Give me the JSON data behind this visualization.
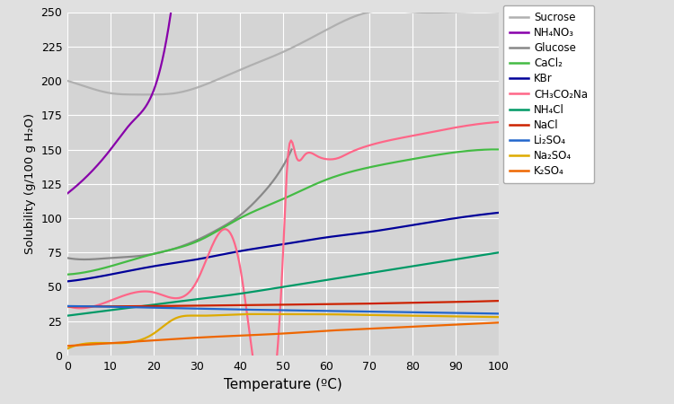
{
  "xlabel": "Temperature (ºC)",
  "ylabel": "Solubility (g/100 g H₂O)",
  "xlim": [
    0,
    100
  ],
  "ylim": [
    0,
    250
  ],
  "fig_facecolor": "#e0e0e0",
  "plot_facecolor": "#d4d4d4",
  "grid_color": "#ffffff",
  "series": [
    {
      "name": "Sucrose",
      "color": "#b0b0b0",
      "linewidth": 1.6,
      "x": [
        0,
        5,
        10,
        15,
        20,
        25,
        30,
        40,
        50,
        60,
        70,
        80,
        90,
        100
      ],
      "y": [
        200,
        195,
        191,
        190,
        190,
        191,
        195,
        208,
        221,
        237,
        250,
        250,
        250,
        250
      ]
    },
    {
      "name": "NH₄NO₃",
      "color": "#8800aa",
      "linewidth": 1.6,
      "x": [
        0,
        5,
        10,
        15,
        20,
        22,
        24
      ],
      "y": [
        118,
        132,
        150,
        170,
        193,
        215,
        250
      ]
    },
    {
      "name": "Glucose",
      "color": "#888888",
      "linewidth": 1.6,
      "x": [
        0,
        5,
        10,
        15,
        20,
        25,
        30,
        35,
        40,
        45,
        50,
        52
      ],
      "y": [
        71,
        70,
        71,
        72,
        74,
        78,
        84,
        92,
        102,
        117,
        138,
        150
      ]
    },
    {
      "name": "CaCl₂",
      "color": "#44bb44",
      "linewidth": 1.6,
      "x": [
        0,
        10,
        20,
        30,
        40,
        50,
        60,
        70,
        80,
        90,
        100
      ],
      "y": [
        59,
        65,
        74,
        83,
        100,
        114,
        128,
        137,
        143,
        148,
        150
      ]
    },
    {
      "name": "KBr",
      "color": "#000099",
      "linewidth": 1.6,
      "x": [
        0,
        10,
        20,
        30,
        40,
        50,
        60,
        70,
        80,
        90,
        100
      ],
      "y": [
        54,
        59,
        65,
        70,
        76,
        81,
        86,
        90,
        95,
        100,
        104
      ]
    },
    {
      "name": "CH₃CO₂Na",
      "color": "#ff6688",
      "linewidth": 1.6,
      "x": [
        0,
        10,
        20,
        30,
        40,
        50,
        51,
        53,
        55,
        58,
        60,
        63,
        65,
        70,
        80,
        90,
        100
      ],
      "y": [
        36,
        40,
        46,
        54,
        65,
        75,
        140,
        145,
        146,
        145,
        143,
        144,
        147,
        153,
        160,
        166,
        170
      ]
    },
    {
      "name": "NH₄Cl",
      "color": "#009966",
      "linewidth": 1.6,
      "x": [
        0,
        10,
        20,
        30,
        40,
        50,
        60,
        70,
        80,
        90,
        100
      ],
      "y": [
        29,
        33,
        37,
        41,
        45,
        50,
        55,
        60,
        65,
        70,
        75
      ]
    },
    {
      "name": "NaCl",
      "color": "#cc2200",
      "linewidth": 1.6,
      "x": [
        0,
        10,
        20,
        30,
        40,
        50,
        60,
        70,
        80,
        90,
        100
      ],
      "y": [
        35.7,
        35.8,
        36.0,
        36.3,
        36.6,
        37.0,
        37.3,
        37.8,
        38.4,
        39.0,
        39.8
      ]
    },
    {
      "name": "Li₂SO₄",
      "color": "#2266cc",
      "linewidth": 1.6,
      "x": [
        0,
        10,
        20,
        30,
        40,
        50,
        60,
        70,
        80,
        90,
        100
      ],
      "y": [
        36,
        35.5,
        34.8,
        34.2,
        33.5,
        33.0,
        32.5,
        32.0,
        31.5,
        31.0,
        30.5
      ]
    },
    {
      "name": "Na₂SO₄",
      "color": "#ddaa00",
      "linewidth": 1.6,
      "x": [
        0,
        10,
        20,
        25,
        30,
        40,
        50,
        60,
        70,
        80,
        90,
        100
      ],
      "y": [
        5,
        9,
        16,
        27,
        29,
        30,
        30,
        30,
        29.5,
        29,
        28.5,
        28
      ]
    },
    {
      "name": "K₂SO₄",
      "color": "#ee6600",
      "linewidth": 1.6,
      "x": [
        0,
        10,
        20,
        30,
        40,
        50,
        60,
        70,
        80,
        90,
        100
      ],
      "y": [
        7,
        9,
        11,
        13,
        14.5,
        16,
        18,
        19.5,
        21,
        22.5,
        24
      ]
    }
  ]
}
